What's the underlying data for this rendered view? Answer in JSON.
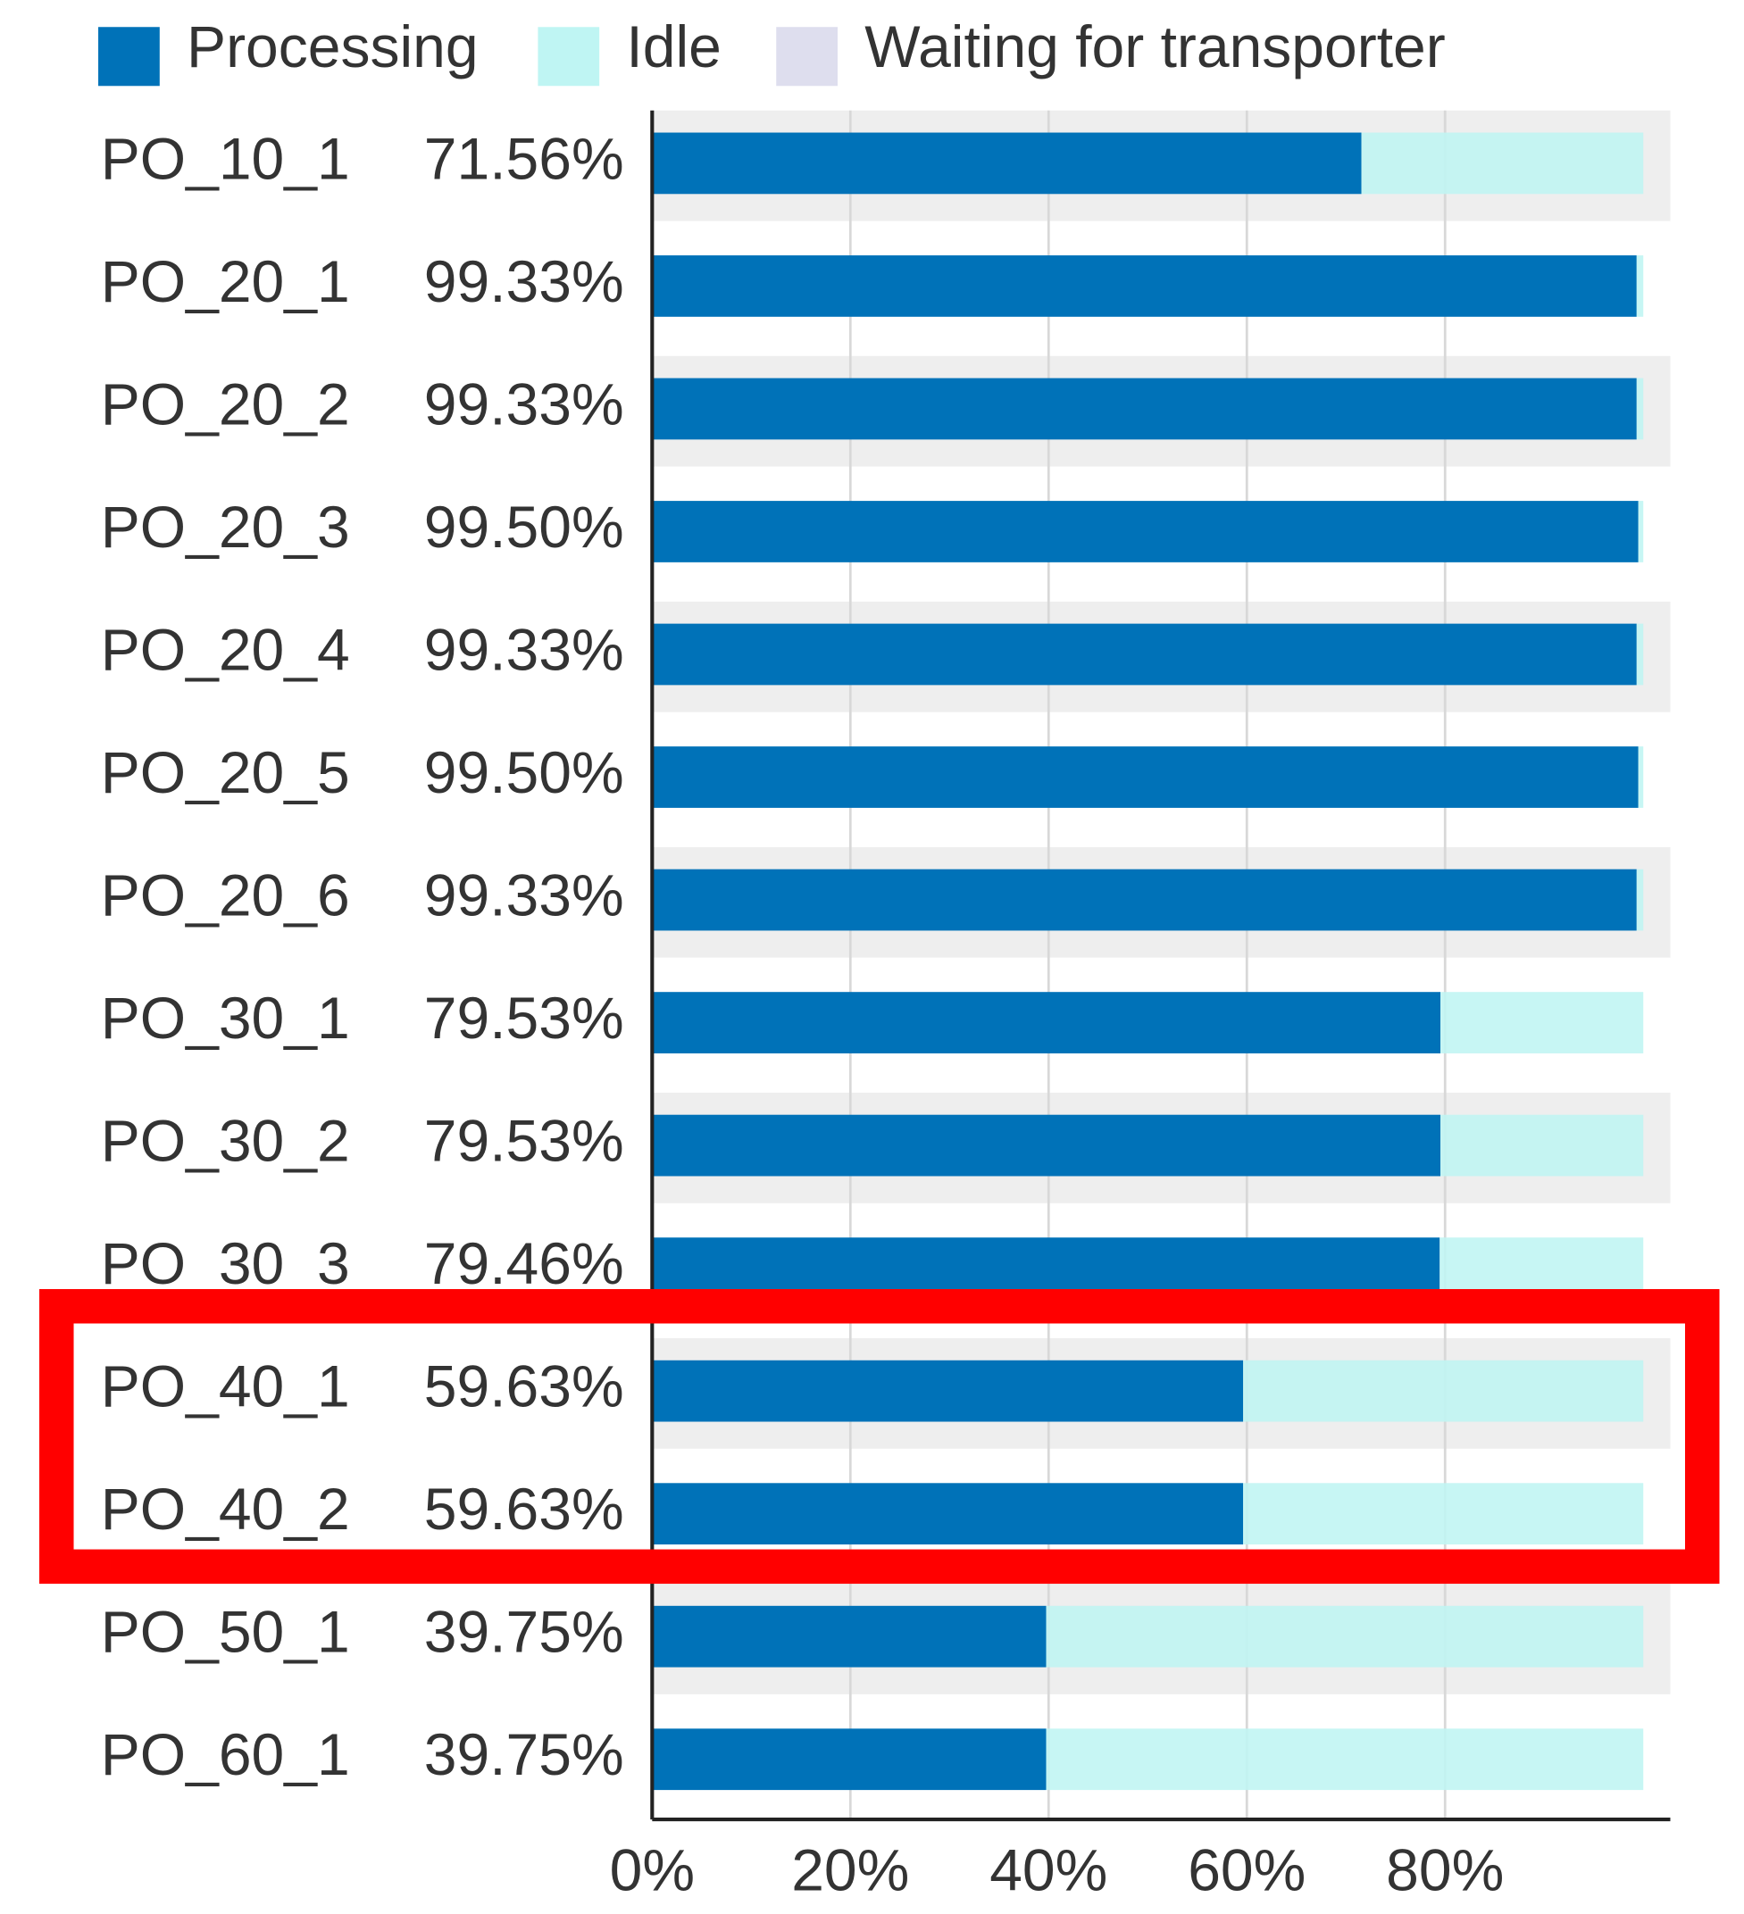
{
  "chart_data": {
    "type": "stacked-bar-horizontal",
    "categories": [
      "PO_10_1",
      "PO_20_1",
      "PO_20_2",
      "PO_20_3",
      "PO_20_4",
      "PO_20_5",
      "PO_20_6",
      "PO_30_1",
      "PO_30_2",
      "PO_30_3",
      "PO_40_1",
      "PO_40_2",
      "PO_50_1",
      "PO_60_1"
    ],
    "series": [
      {
        "name": "Processing",
        "color": "#0072b8",
        "values": [
          71.56,
          99.33,
          99.33,
          99.5,
          99.33,
          99.5,
          99.33,
          79.53,
          79.53,
          79.46,
          59.63,
          59.63,
          39.75,
          39.75
        ],
        "value_labels": [
          "71.56%",
          "99.33%",
          "99.33%",
          "99.50%",
          "99.33%",
          "99.50%",
          "99.33%",
          "79.53%",
          "79.53%",
          "79.46%",
          "59.63%",
          "59.63%",
          "39.75%",
          "39.75%"
        ]
      },
      {
        "name": "Idle",
        "color": "#bff5f3",
        "values": [
          28.44,
          0.67,
          0.67,
          0.5,
          0.67,
          0.5,
          0.67,
          20.47,
          20.47,
          20.54,
          40.37,
          40.37,
          60.25,
          60.25
        ]
      },
      {
        "name": "Waiting for transporter",
        "color": "#dedeee",
        "values": [
          0,
          0,
          0,
          0,
          0,
          0,
          0,
          0,
          0,
          0,
          0,
          0,
          0,
          0
        ]
      }
    ],
    "xlim": [
      0,
      100
    ],
    "xticks": [
      {
        "value": 0,
        "label": "0%"
      },
      {
        "value": 20,
        "label": "20%"
      },
      {
        "value": 40,
        "label": "40%"
      },
      {
        "value": 60,
        "label": "60%"
      },
      {
        "value": 80,
        "label": "80%"
      }
    ],
    "grid": true
  }
}
